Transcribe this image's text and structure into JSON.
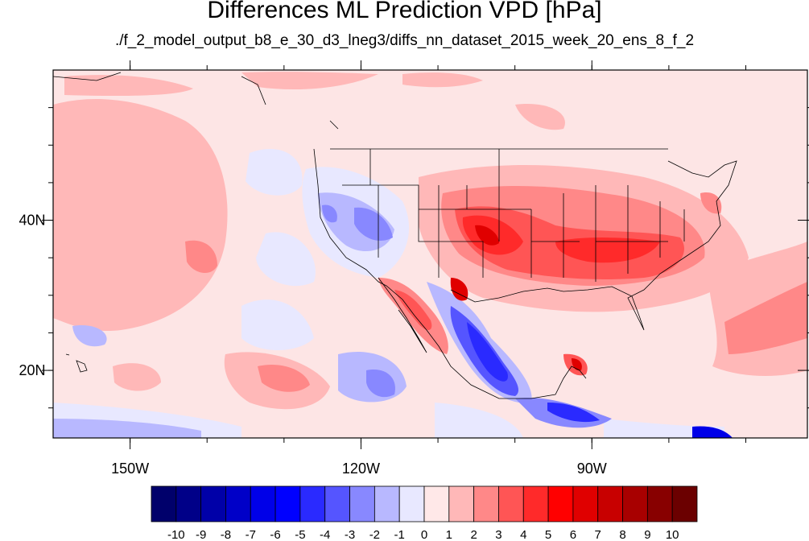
{
  "title": "Differences ML Prediction VPD [hPa]",
  "subtitle": "./f_2_model_output_b8_e_30_d3_lneg3/diffs_nn_dataset_2015_week_20_ens_8_f_2",
  "map": {
    "lon_range": [
      -160,
      -62
    ],
    "lat_range": [
      11,
      60
    ],
    "lon_ticks": [
      {
        "value": -150,
        "label": "150W"
      },
      {
        "value": -120,
        "label": "120W"
      },
      {
        "value": -90,
        "label": "90W"
      }
    ],
    "lat_ticks": [
      {
        "value": 40,
        "label": "40N"
      },
      {
        "value": 20,
        "label": "20N"
      }
    ],
    "background_color": "#fde5e5"
  },
  "colorbar": {
    "labels": [
      "-10",
      "-9",
      "-8",
      "-7",
      "-6",
      "-5",
      "-4",
      "-3",
      "-2",
      "-1",
      "0",
      "1",
      "2",
      "3",
      "4",
      "5",
      "6",
      "7",
      "8",
      "9",
      "10"
    ],
    "colors": [
      "#00006b",
      "#000088",
      "#0000a8",
      "#0000c8",
      "#0000e8",
      "#0000ff",
      "#2a2aff",
      "#5555ff",
      "#8888ff",
      "#b8b8ff",
      "#e8e8ff",
      "#ffe8e8",
      "#ffb8b8",
      "#ff8888",
      "#ff5555",
      "#ff2a2a",
      "#ff0000",
      "#e00000",
      "#c80000",
      "#a80000",
      "#880000",
      "#6b0000"
    ]
  }
}
